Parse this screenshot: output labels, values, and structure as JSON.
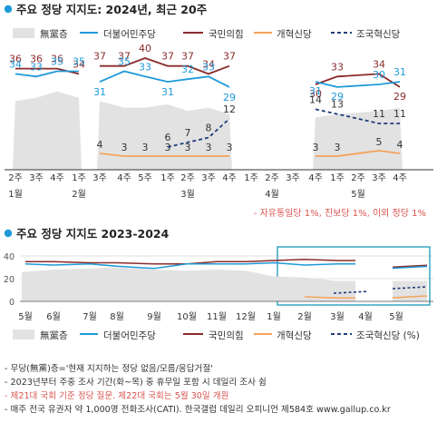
{
  "colors": {
    "undecided": "#e2e2e2",
    "democratic": "#1f9ad8",
    "ppp": "#8b2a2a",
    "reform": "#f4a35a",
    "rebuild": "#1f3d7a",
    "bullet": "#1f9ad8",
    "footnote_red": "#d9534f"
  },
  "chart1": {
    "title": "주요 정당 지지도: 2024년, 최근 20주",
    "legend": [
      "無黨층",
      "더불어민주당",
      "국민의힘",
      "개혁신당",
      "조국혁신당"
    ],
    "note": "- 자유통일당 1%, 진보당 1%, 이외 정당 1%"
  },
  "chart2": {
    "title": "주요 정당 지지도 2023-2024",
    "legend": [
      "無黨층",
      "더불어민주당",
      "국민의힘",
      "개혁신당",
      "조국혁신당 (%)"
    ],
    "y_ticks": [
      "40",
      "20",
      "0"
    ],
    "month_labels": [
      "5월",
      "6월",
      "7월",
      "8월",
      "9월",
      "10월",
      "11월",
      "12월",
      "1월",
      "2월",
      "3월",
      "4월",
      "5월"
    ]
  },
  "footnotes": [
    "- 무당(無黨)층='현재 지지하는 정당 없음/모름/응답거절'",
    "- 2023년부터 주중 조사 기간(화~목) 중 휴무일 포함 시 데일리 조사 쉼",
    "- 제21대 국회 기준 정당 질문. 제22대 국회는 5월 30일 개원",
    "- 매주 전국 유권자 약 1,000명 전화조사(CATI). 한국갤럽 데일리 오피니언 제584호 www.gallup.co.kr"
  ],
  "chart_data": [
    {
      "type": "line",
      "title": "주요 정당 지지도: 2024년, 최근 20주",
      "x": [
        "1월 2주",
        "1월 3주",
        "1월 4주",
        "2월 1주",
        "2월 3주",
        "2월 4주",
        "2월 5주",
        "3월 1주",
        "3월 2주",
        "3월 3주",
        "3월 4주",
        "4월 1주",
        "4월 2주",
        "4월 3주",
        "4월 4주",
        "5월 1주",
        "5월 2주",
        "5월 3주",
        "5월 4주"
      ],
      "x_tick_labels": [
        "2주",
        "3주",
        "4주",
        "1주",
        "3주",
        "4주",
        "5주",
        "1주",
        "2주",
        "3주",
        "4주",
        "1주",
        "2주",
        "3주",
        "4주",
        "1주",
        "2주",
        "3주",
        "4주"
      ],
      "month_labels": [
        "1월",
        "2월",
        "3월",
        "4월",
        "5월"
      ],
      "series": [
        {
          "name": "더불어민주당",
          "values": [
            34,
            33,
            35,
            35,
            31,
            35,
            33,
            31,
            32,
            33,
            29,
            null,
            null,
            null,
            31,
            29,
            null,
            30,
            31
          ]
        },
        {
          "name": "국민의힘",
          "values": [
            36,
            36,
            36,
            34,
            37,
            37,
            40,
            37,
            37,
            34,
            37,
            null,
            null,
            null,
            30,
            33,
            null,
            34,
            29
          ]
        },
        {
          "name": "개혁신당",
          "values": [
            null,
            null,
            null,
            null,
            4,
            3,
            3,
            3,
            3,
            3,
            3,
            null,
            null,
            null,
            3,
            3,
            null,
            5,
            4
          ]
        },
        {
          "name": "조국혁신당",
          "values": [
            null,
            null,
            null,
            null,
            null,
            null,
            null,
            6,
            7,
            8,
            12,
            null,
            null,
            null,
            14,
            13,
            null,
            11,
            11
          ]
        },
        {
          "name": "無黨층",
          "values": [
            21,
            22,
            24,
            22,
            21,
            19,
            19,
            20,
            18,
            19,
            17,
            null,
            null,
            null,
            16,
            17,
            null,
            18,
            19
          ]
        }
      ],
      "gap_labels": [
        "1주",
        "2주",
        "3주",
        "4주"
      ],
      "note": "자유통일당 1%, 진보당 1%, 이외 정당 1%"
    },
    {
      "type": "line",
      "title": "주요 정당 지지도 2023-2024",
      "x": [
        "5월",
        "6월",
        "7월",
        "8월",
        "9월",
        "10월",
        "11월",
        "12월",
        "1월",
        "2월",
        "3월",
        "4월",
        "5월"
      ],
      "ylim": [
        0,
        40
      ],
      "y_ticks": [
        0,
        20,
        40
      ],
      "series": [
        {
          "name": "더불어민주당",
          "values": [
            33,
            32,
            33,
            31,
            29,
            33,
            33,
            33,
            34,
            32,
            33,
            null,
            30
          ]
        },
        {
          "name": "국민의힘",
          "values": [
            35,
            35,
            34,
            34,
            33,
            33,
            35,
            35,
            36,
            37,
            36,
            null,
            31
          ]
        },
        {
          "name": "無黨층",
          "values": [
            26,
            28,
            29,
            30,
            28,
            27,
            28,
            27,
            22,
            21,
            18,
            null,
            18
          ]
        },
        {
          "name": "개혁신당",
          "values": [
            null,
            null,
            null,
            null,
            null,
            null,
            null,
            null,
            null,
            4,
            3,
            null,
            4
          ]
        },
        {
          "name": "조국혁신당",
          "values": [
            null,
            null,
            null,
            null,
            null,
            null,
            null,
            null,
            null,
            null,
            8,
            null,
            12
          ]
        }
      ]
    }
  ]
}
